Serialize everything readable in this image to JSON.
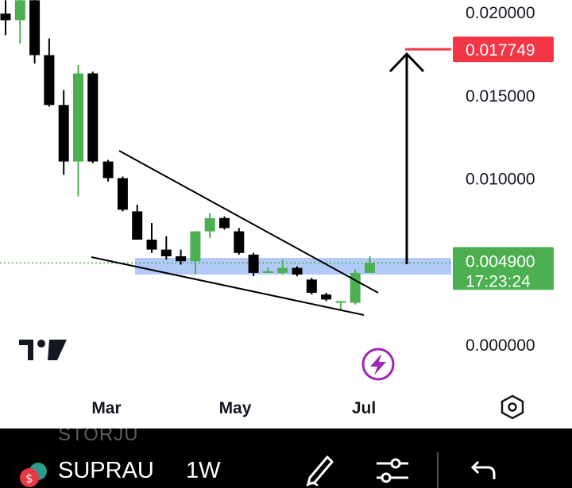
{
  "chart_data": {
    "type": "candlestick",
    "symbol": "SUPRAU",
    "interval": "1W",
    "previous_symbol": "STORJU",
    "y_ticks": [
      "0.020000",
      "0.015000",
      "0.010000",
      "0.000000"
    ],
    "y_tick_values": [
      0.02,
      0.015,
      0.01,
      0.0
    ],
    "x_ticks": [
      "Mar",
      "May",
      "Jul"
    ],
    "target_label": "0.017749",
    "target_value": 0.017749,
    "current_price_label": "0.004900",
    "current_price": 0.0049,
    "countdown": "17:23:24",
    "zone": [
      0.0042,
      0.0052
    ],
    "ohlc": [
      {
        "o": 0.0199,
        "h": 0.0207,
        "l": 0.0186,
        "c": 0.0195
      },
      {
        "o": 0.0195,
        "h": 0.0208,
        "l": 0.0181,
        "c": 0.0207
      },
      {
        "o": 0.0207,
        "h": 0.0212,
        "l": 0.0169,
        "c": 0.0174
      },
      {
        "o": 0.0174,
        "h": 0.0184,
        "l": 0.0143,
        "c": 0.0144
      },
      {
        "o": 0.0144,
        "h": 0.0153,
        "l": 0.0102,
        "c": 0.011
      },
      {
        "o": 0.011,
        "h": 0.0168,
        "l": 0.0089,
        "c": 0.0163
      },
      {
        "o": 0.0163,
        "h": 0.0164,
        "l": 0.0109,
        "c": 0.011
      },
      {
        "o": 0.011,
        "h": 0.0111,
        "l": 0.0098,
        "c": 0.01
      },
      {
        "o": 0.01,
        "h": 0.0101,
        "l": 0.008,
        "c": 0.0081
      },
      {
        "o": 0.008,
        "h": 0.0084,
        "l": 0.0063,
        "c": 0.0063
      },
      {
        "o": 0.0063,
        "h": 0.0073,
        "l": 0.0055,
        "c": 0.0057
      },
      {
        "o": 0.0057,
        "h": 0.0065,
        "l": 0.0051,
        "c": 0.0053
      },
      {
        "o": 0.0053,
        "h": 0.0057,
        "l": 0.0048,
        "c": 0.005
      },
      {
        "o": 0.005,
        "h": 0.0068,
        "l": 0.0042,
        "c": 0.0068
      },
      {
        "o": 0.0068,
        "h": 0.0079,
        "l": 0.0064,
        "c": 0.0076
      },
      {
        "o": 0.0076,
        "h": 0.0077,
        "l": 0.0069,
        "c": 0.007
      },
      {
        "o": 0.0068,
        "h": 0.007,
        "l": 0.0054,
        "c": 0.0055
      },
      {
        "o": 0.0054,
        "h": 0.0055,
        "l": 0.0041,
        "c": 0.0043
      },
      {
        "o": 0.0043,
        "h": 0.0046,
        "l": 0.0043,
        "c": 0.0044
      },
      {
        "o": 0.0043,
        "h": 0.0051,
        "l": 0.0042,
        "c": 0.0046
      },
      {
        "o": 0.0046,
        "h": 0.0047,
        "l": 0.0041,
        "c": 0.0042
      },
      {
        "o": 0.0039,
        "h": 0.004,
        "l": 0.003,
        "c": 0.0031
      },
      {
        "o": 0.003,
        "h": 0.0031,
        "l": 0.0026,
        "c": 0.0027
      },
      {
        "o": 0.0026,
        "h": 0.0026,
        "l": 0.0021,
        "c": 0.0026
      },
      {
        "o": 0.0025,
        "h": 0.0045,
        "l": 0.0024,
        "c": 0.0043
      },
      {
        "o": 0.0043,
        "h": 0.0053,
        "l": 0.0043,
        "c": 0.0049
      }
    ],
    "legend": "none",
    "grid": false,
    "colors": {
      "bull": "#4caf50",
      "bear": "#000000",
      "zone": "#aac4f7",
      "target": "#f23645",
      "price": "#4caf50"
    }
  },
  "icons": {
    "logo": "tradingview-logo-icon",
    "flash": "lightning-icon",
    "settings": "hexagon-settings-icon",
    "draw": "pencil-draw-icon",
    "indicators": "sliders-icon",
    "undo": "undo-icon"
  }
}
